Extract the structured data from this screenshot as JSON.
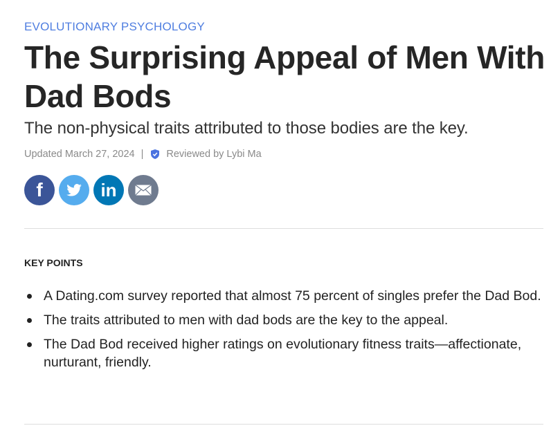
{
  "article": {
    "topic": "EVOLUTIONARY PSYCHOLOGY",
    "title": "The Surprising Appeal of Men With Dad Bods",
    "subtitle": "The non-physical traits attributed to those bodies are the key.",
    "updated": "Updated March 27, 2024",
    "separator": "|",
    "reviewed": "Reviewed by Lybi Ma"
  },
  "share": {
    "facebook_glyph": "f",
    "linkedin_glyph": "in",
    "colors": {
      "facebook": "#3b5598",
      "twitter": "#55acee",
      "linkedin": "#0177b5",
      "email": "#6f7b8f"
    }
  },
  "key_points": {
    "heading": "KEY POINTS",
    "items": [
      "A Dating.com survey reported that almost 75 percent of singles prefer the Dad Bod.",
      "The traits attributed to men with dad bods are the key to the appeal.",
      "The Dad Bod received higher ratings on evolutionary fitness traits—affectionate, nurturant, friendly."
    ]
  },
  "colors": {
    "accent": "#4f7ee0",
    "verified": "#4a72e0"
  }
}
